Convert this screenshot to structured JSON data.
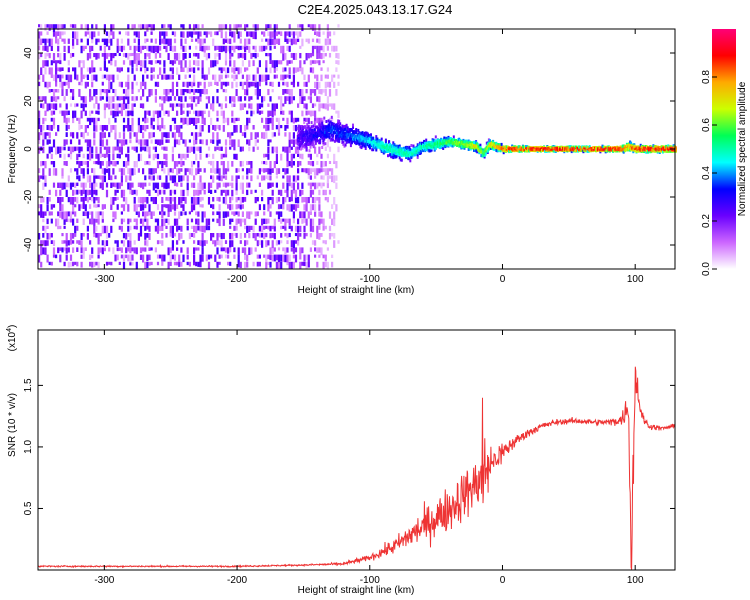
{
  "chart_data": [
    {
      "type": "heatmap",
      "title": "C2E4.2025.043.13.17.G24",
      "xlabel": "Height of straight line (km)",
      "ylabel": "Frequency (Hz)",
      "xlim": [
        -350,
        130
      ],
      "ylim": [
        -50,
        50
      ],
      "x_ticks": [
        -300,
        -200,
        -100,
        0,
        100
      ],
      "y_ticks": [
        -40,
        -20,
        0,
        20,
        40
      ],
      "colorbar": {
        "label": "Normalized spectral amplitude",
        "range": [
          0,
          1
        ],
        "ticks": [
          "0.0",
          "0.2",
          "0.4",
          "0.6",
          "0.8"
        ],
        "colors": [
          "#ffffff",
          "#cc66ff",
          "#6a00ff",
          "#0000ff",
          "#00ffff",
          "#00ff55",
          "#ccff00",
          "#ffaa00",
          "#ff0000",
          "#ff0077"
        ]
      },
      "noise_region_km": [
        -350,
        -120
      ],
      "signal_track": {
        "x": [
          -155,
          -140,
          -130,
          -120,
          -110,
          -100,
          -90,
          -80,
          -70,
          -60,
          -50,
          -40,
          -30,
          -20,
          -15,
          -10,
          0,
          20,
          50,
          80,
          90,
          95,
          100,
          130
        ],
        "y": [
          5,
          6,
          8,
          6,
          5,
          3,
          1,
          -1,
          -2,
          1,
          2,
          3,
          2,
          1,
          -2,
          2,
          0,
          0,
          0,
          0,
          0,
          1,
          0,
          0
        ],
        "amplitude": [
          0.25,
          0.3,
          0.35,
          0.35,
          0.4,
          0.45,
          0.5,
          0.5,
          0.5,
          0.5,
          0.55,
          0.6,
          0.65,
          0.7,
          0.6,
          0.7,
          0.85,
          0.9,
          0.9,
          0.9,
          0.85,
          0.75,
          0.9,
          0.9
        ],
        "spread_hz": [
          10,
          8,
          8,
          7,
          6,
          5,
          5,
          5,
          4,
          4,
          4,
          3,
          3,
          3,
          3,
          3,
          2,
          1.5,
          1.5,
          1.5,
          2,
          3,
          2,
          2
        ]
      }
    },
    {
      "type": "line",
      "xlabel": "Height of straight line (km)",
      "ylabel": "SNR (10 * v/v)",
      "y_multiplier": "(x10^4)",
      "multiplier_base": "(x10",
      "multiplier_exp": "4",
      "xlim": [
        -350,
        130
      ],
      "ylim": [
        0,
        1.95
      ],
      "x_ticks": [
        -300,
        -200,
        -100,
        0,
        100
      ],
      "y_ticks": [
        0.5,
        1.0,
        1.5
      ],
      "series": [
        {
          "color": "#ee3333",
          "x": [
            -350,
            -300,
            -250,
            -200,
            -150,
            -120,
            -100,
            -90,
            -80,
            -70,
            -60,
            -50,
            -40,
            -30,
            -20,
            -15,
            -10,
            0,
            10,
            20,
            30,
            40,
            50,
            60,
            70,
            80,
            90,
            95,
            97,
            100,
            105,
            110,
            120,
            130
          ],
          "y": [
            0.03,
            0.03,
            0.03,
            0.03,
            0.04,
            0.05,
            0.1,
            0.15,
            0.2,
            0.28,
            0.35,
            0.42,
            0.5,
            0.6,
            0.7,
            0.75,
            0.85,
            0.95,
            1.05,
            1.12,
            1.17,
            1.2,
            1.21,
            1.21,
            1.2,
            1.2,
            1.22,
            1.35,
            0.05,
            1.6,
            1.25,
            1.17,
            1.15,
            1.17
          ],
          "noise": [
            0.01,
            0.01,
            0.01,
            0.01,
            0.01,
            0.02,
            0.04,
            0.08,
            0.12,
            0.18,
            0.24,
            0.28,
            0.32,
            0.35,
            0.32,
            0.6,
            0.3,
            0.15,
            0.08,
            0.06,
            0.05,
            0.04,
            0.04,
            0.04,
            0.04,
            0.04,
            0.08,
            0.25,
            0.6,
            0.4,
            0.08,
            0.04,
            0.03,
            0.03
          ]
        }
      ]
    }
  ]
}
